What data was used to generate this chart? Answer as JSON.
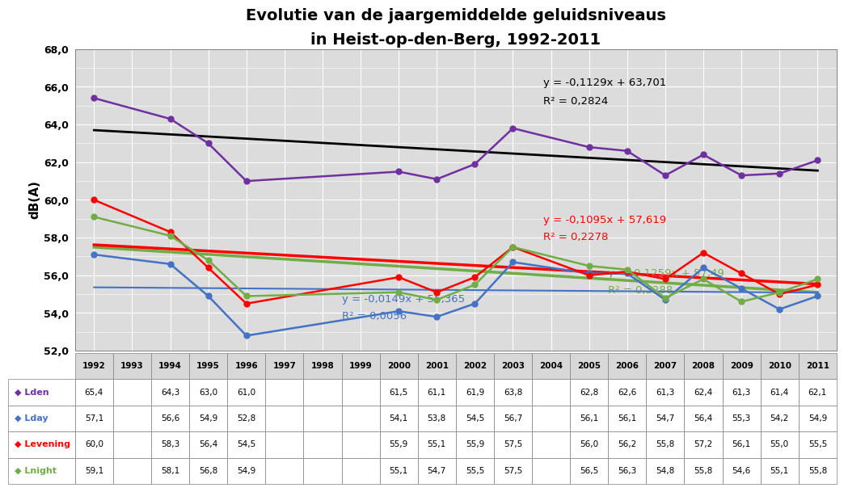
{
  "title_line1": "Evolutie van de jaargemiddelde geluidsniveaus",
  "title_line2": "in Heist-op-den-Berg, 1992-2011",
  "ylabel": "dB(A)",
  "years": [
    1992,
    1993,
    1994,
    1995,
    1996,
    1997,
    1998,
    1999,
    2000,
    2001,
    2002,
    2003,
    2004,
    2005,
    2006,
    2007,
    2008,
    2009,
    2010,
    2011
  ],
  "Lden": {
    "1992": 65.4,
    "1994": 64.3,
    "1995": 63.0,
    "1996": 61.0,
    "2000": 61.5,
    "2001": 61.1,
    "2002": 61.9,
    "2003": 63.8,
    "2005": 62.8,
    "2006": 62.6,
    "2007": 61.3,
    "2008": 62.4,
    "2009": 61.3,
    "2010": 61.4,
    "2011": 62.1
  },
  "Lday": {
    "1992": 57.1,
    "1994": 56.6,
    "1995": 54.9,
    "1996": 52.8,
    "2000": 54.1,
    "2001": 53.8,
    "2002": 54.5,
    "2003": 56.7,
    "2005": 56.1,
    "2006": 56.1,
    "2007": 54.7,
    "2008": 56.4,
    "2009": 55.3,
    "2010": 54.2,
    "2011": 54.9
  },
  "Levening": {
    "1992": 60.0,
    "1994": 58.3,
    "1995": 56.4,
    "1996": 54.5,
    "2000": 55.9,
    "2001": 55.1,
    "2002": 55.9,
    "2003": 57.5,
    "2005": 56.0,
    "2006": 56.2,
    "2007": 55.8,
    "2008": 57.2,
    "2009": 56.1,
    "2010": 55.0,
    "2011": 55.5
  },
  "Lnight": {
    "1992": 59.1,
    "1994": 58.1,
    "1995": 56.8,
    "1996": 54.9,
    "2000": 55.1,
    "2001": 54.7,
    "2002": 55.5,
    "2003": 57.5,
    "2005": 56.5,
    "2006": 56.3,
    "2007": 54.8,
    "2008": 55.8,
    "2009": 54.6,
    "2010": 55.1,
    "2011": 55.8
  },
  "color_Lden": "#7030A0",
  "color_Lday": "#4472C4",
  "color_Levening": "#FF0000",
  "color_Lnight": "#70AD47",
  "trend_Lden": {
    "slope": -0.1129,
    "intercept": 63.701,
    "label_line1": "y = -0,1129x + 63,701",
    "label_line2": "R² = 0,2824",
    "color": "#000000"
  },
  "trend_Lday": {
    "slope": -0.0149,
    "intercept": 55.365,
    "label_line1": "y = -0,0149x + 55,365",
    "label_line2": "R² = 0,0056",
    "color": "#4472C4"
  },
  "trend_Levening": {
    "slope": -0.1095,
    "intercept": 57.619,
    "label_line1": "y = -0,1095x + 57,619",
    "label_line2": "R² = 0,2278",
    "color": "#FF0000"
  },
  "trend_Lnight": {
    "slope": -0.1259,
    "intercept": 57.49,
    "label_line1": "y = -0,1259x + 57,49",
    "label_line2": "R² = 0,3288",
    "color": "#70AD47"
  },
  "ylim": [
    52.0,
    68.0
  ],
  "yticks": [
    52.0,
    54.0,
    56.0,
    58.0,
    60.0,
    62.0,
    64.0,
    66.0,
    68.0
  ],
  "table_Lden": [
    "65,4",
    "",
    "64,3",
    "63,0",
    "61,0",
    "",
    "",
    "",
    "61,5",
    "61,1",
    "61,9",
    "63,8",
    "",
    "62,8",
    "62,6",
    "61,3",
    "62,4",
    "61,3",
    "61,4",
    "62,1"
  ],
  "table_Lday": [
    "57,1",
    "",
    "56,6",
    "54,9",
    "52,8",
    "",
    "",
    "",
    "54,1",
    "53,8",
    "54,5",
    "56,7",
    "",
    "56,1",
    "56,1",
    "54,7",
    "56,4",
    "55,3",
    "54,2",
    "54,9"
  ],
  "table_Levening": [
    "60,0",
    "",
    "58,3",
    "56,4",
    "54,5",
    "",
    "",
    "",
    "55,9",
    "55,1",
    "55,9",
    "57,5",
    "",
    "56,0",
    "56,2",
    "55,8",
    "57,2",
    "56,1",
    "55,0",
    "55,5"
  ],
  "table_Lnight": [
    "59,1",
    "",
    "58,1",
    "56,8",
    "54,9",
    "",
    "",
    "",
    "55,1",
    "54,7",
    "55,5",
    "57,5",
    "",
    "56,5",
    "56,3",
    "54,8",
    "55,8",
    "54,6",
    "55,1",
    "55,8"
  ]
}
